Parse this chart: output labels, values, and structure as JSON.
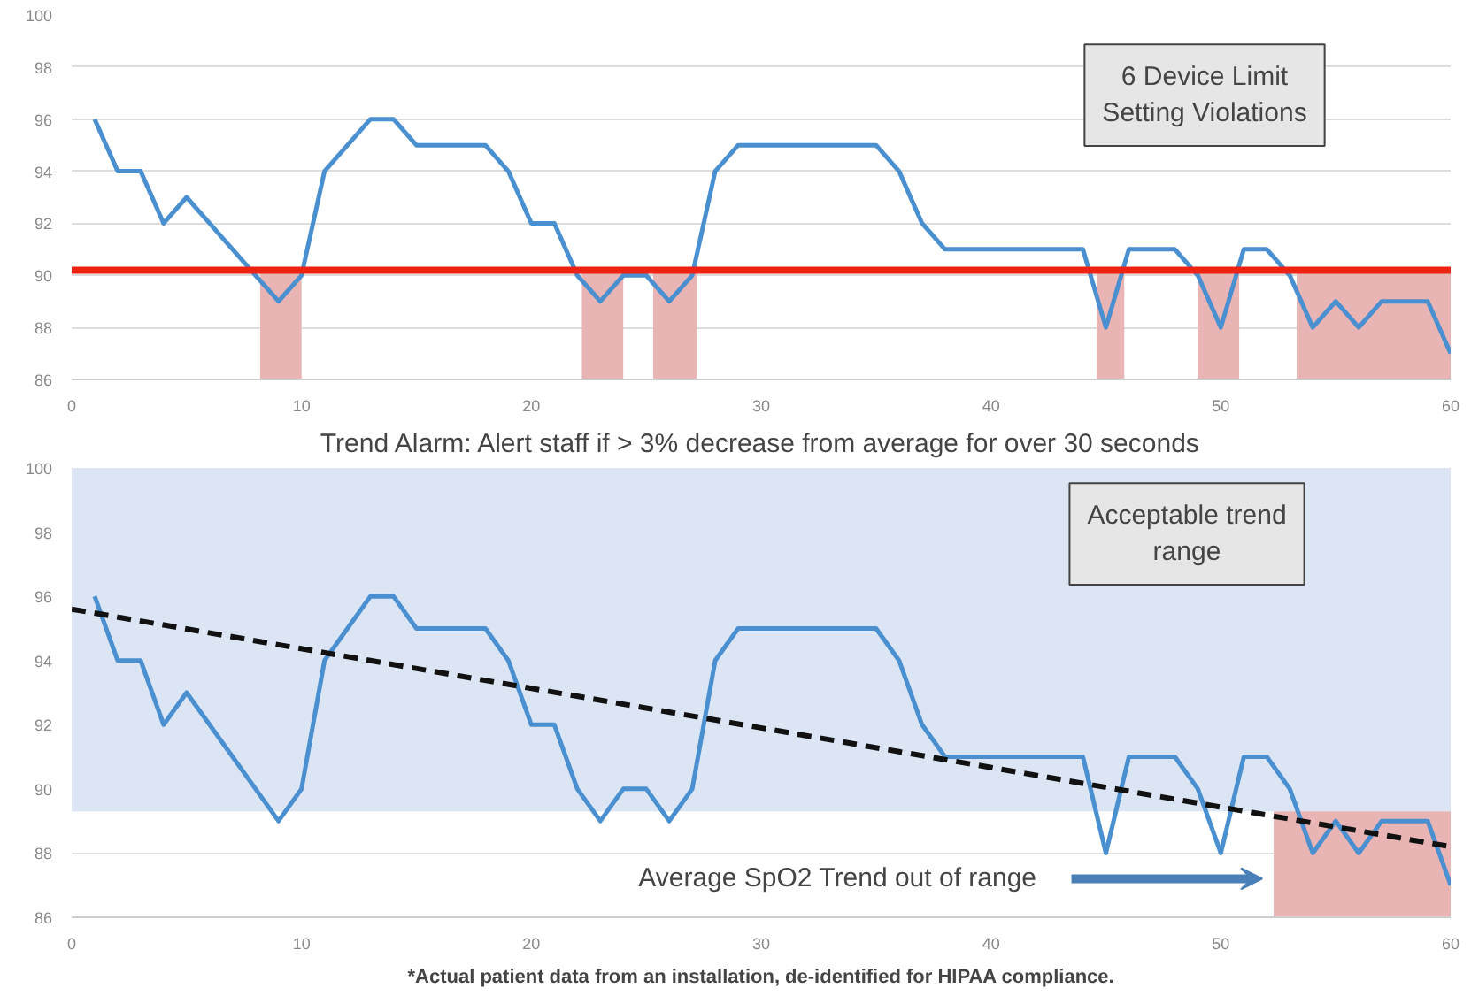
{
  "chart_data": [
    {
      "type": "line",
      "x": [
        1,
        2,
        3,
        4,
        5,
        6,
        7,
        8,
        9,
        10,
        11,
        12,
        13,
        14,
        15,
        16,
        17,
        18,
        19,
        20,
        21,
        22,
        23,
        24,
        25,
        26,
        27,
        28,
        29,
        30,
        31,
        32,
        33,
        34,
        35,
        36,
        37,
        38,
        39,
        40,
        41,
        42,
        43,
        44,
        45,
        46,
        47,
        48,
        49,
        50,
        51,
        52,
        53,
        54,
        55,
        56,
        57,
        58,
        59,
        60
      ],
      "series": [
        {
          "color": "#4a8fd0",
          "values": [
            96,
            94,
            94,
            92,
            93,
            92,
            91,
            90,
            89,
            90,
            94,
            95,
            96,
            96,
            95,
            95,
            95,
            95,
            94,
            92,
            92,
            90,
            89,
            90,
            90,
            89,
            90,
            94,
            95,
            95,
            95,
            95,
            95,
            95,
            95,
            94,
            92,
            91,
            91,
            91,
            91,
            91,
            91,
            91,
            88,
            91,
            91,
            91,
            90,
            88,
            91,
            91,
            90,
            88,
            89,
            88,
            89,
            89,
            89,
            87
          ]
        }
      ],
      "xlim": [
        0,
        60
      ],
      "ylim": [
        86,
        100
      ],
      "xticks": [
        0,
        10,
        20,
        30,
        40,
        50,
        60
      ],
      "yticks": [
        86,
        88,
        90,
        92,
        94,
        96,
        98,
        100
      ],
      "grid": "y",
      "ref_lines": [
        {
          "axis": "y",
          "value": 90.2,
          "color": "#ee2211"
        }
      ],
      "bands": [
        {
          "axis": "x",
          "from": 8.2,
          "to": 10,
          "color": "#e8b4b4"
        },
        {
          "axis": "x",
          "from": 22.2,
          "to": 24,
          "color": "#e8b4b4"
        },
        {
          "axis": "x",
          "from": 25.3,
          "to": 27.2,
          "color": "#e8b4b4"
        },
        {
          "axis": "x",
          "from": 44.6,
          "to": 45.8,
          "color": "#e8b4b4"
        },
        {
          "axis": "x",
          "from": 49,
          "to": 50.8,
          "color": "#e8b4b4"
        },
        {
          "axis": "x",
          "from": 53.3,
          "to": 60,
          "color": "#e8b4b4"
        }
      ],
      "annotations": [
        "6 Device Limit Setting Violations"
      ]
    },
    {
      "type": "line",
      "title": "Trend Alarm: Alert staff if > 3% decrease from average for over 30 seconds",
      "x": [
        1,
        2,
        3,
        4,
        5,
        6,
        7,
        8,
        9,
        10,
        11,
        12,
        13,
        14,
        15,
        16,
        17,
        18,
        19,
        20,
        21,
        22,
        23,
        24,
        25,
        26,
        27,
        28,
        29,
        30,
        31,
        32,
        33,
        34,
        35,
        36,
        37,
        38,
        39,
        40,
        41,
        42,
        43,
        44,
        45,
        46,
        47,
        48,
        49,
        50,
        51,
        52,
        53,
        54,
        55,
        56,
        57,
        58,
        59,
        60
      ],
      "series": [
        {
          "color": "#4a8fd0",
          "values": [
            96,
            94,
            94,
            92,
            93,
            92,
            91,
            90,
            89,
            90,
            94,
            95,
            96,
            96,
            95,
            95,
            95,
            95,
            94,
            92,
            92,
            90,
            89,
            90,
            90,
            89,
            90,
            94,
            95,
            95,
            95,
            95,
            95,
            95,
            95,
            94,
            92,
            91,
            91,
            91,
            91,
            91,
            91,
            91,
            88,
            91,
            91,
            91,
            90,
            88,
            91,
            91,
            90,
            88,
            89,
            88,
            89,
            89,
            89,
            87
          ]
        },
        {
          "type": "line",
          "x": [
            0,
            60
          ],
          "color": "#111111",
          "line_style": "dashed",
          "values": [
            95.6,
            88.2
          ]
        }
      ],
      "xlim": [
        0,
        60
      ],
      "ylim": [
        86,
        100
      ],
      "xticks": [
        0,
        10,
        20,
        30,
        40,
        50,
        60
      ],
      "yticks": [
        86,
        88,
        90,
        92,
        94,
        96,
        98,
        100
      ],
      "grid": "y",
      "bands": [
        {
          "axis": "y",
          "from": 89.3,
          "to": 100,
          "color": "#dbe5f3"
        },
        {
          "axis": "x",
          "from": 52.3,
          "to": 60,
          "color": "#e8b4b4"
        }
      ],
      "annotations": [
        "Acceptable trend range",
        "Average SpO2 Trend out of range",
        "*Actual patient data from an installation, de-identified for HIPAA compliance."
      ]
    }
  ]
}
